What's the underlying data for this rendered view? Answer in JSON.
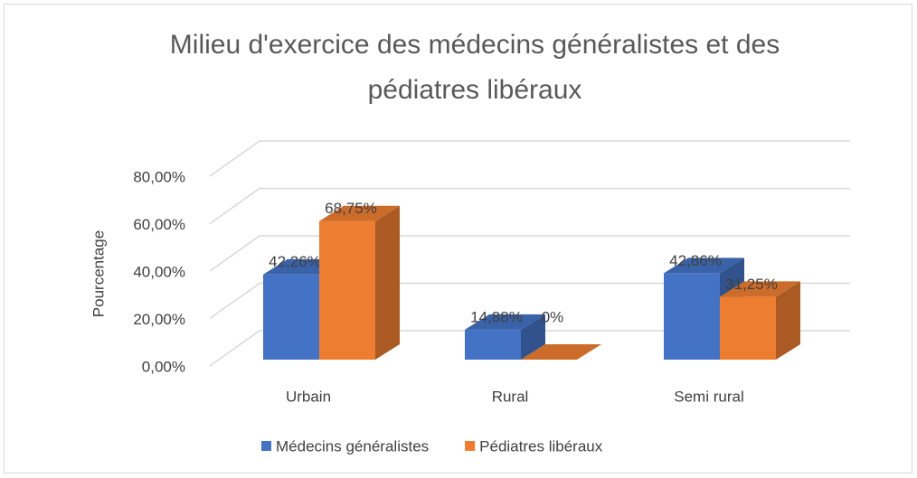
{
  "chart_data": {
    "type": "bar3d",
    "title": "Milieu d'exercice des médecins généralistes et des pédiatres libéraux",
    "ylabel": "Pourcentage",
    "categories": [
      "Urbain",
      "Rural",
      "Semi rural"
    ],
    "series": [
      {
        "name": "Médecins généralistes",
        "color": "#4472c4",
        "values": [
          42.26,
          14.88,
          42.86
        ],
        "value_labels": [
          "42,26%",
          "14,88%",
          "42,86%"
        ]
      },
      {
        "name": "Pédiatres libéraux",
        "color": "#ed7d31",
        "values": [
          68.75,
          0,
          31.25
        ],
        "value_labels": [
          "68,75%",
          "0%",
          "31,25%"
        ]
      }
    ],
    "ylim": [
      0,
      80
    ],
    "yticks": [
      {
        "value": 0,
        "label": "0,00%"
      },
      {
        "value": 20,
        "label": "20,00%"
      },
      {
        "value": 40,
        "label": "40,00%"
      },
      {
        "value": 60,
        "label": "60,00%"
      },
      {
        "value": 80,
        "label": "80,00%"
      }
    ],
    "grid": true,
    "legend": "bottom"
  }
}
